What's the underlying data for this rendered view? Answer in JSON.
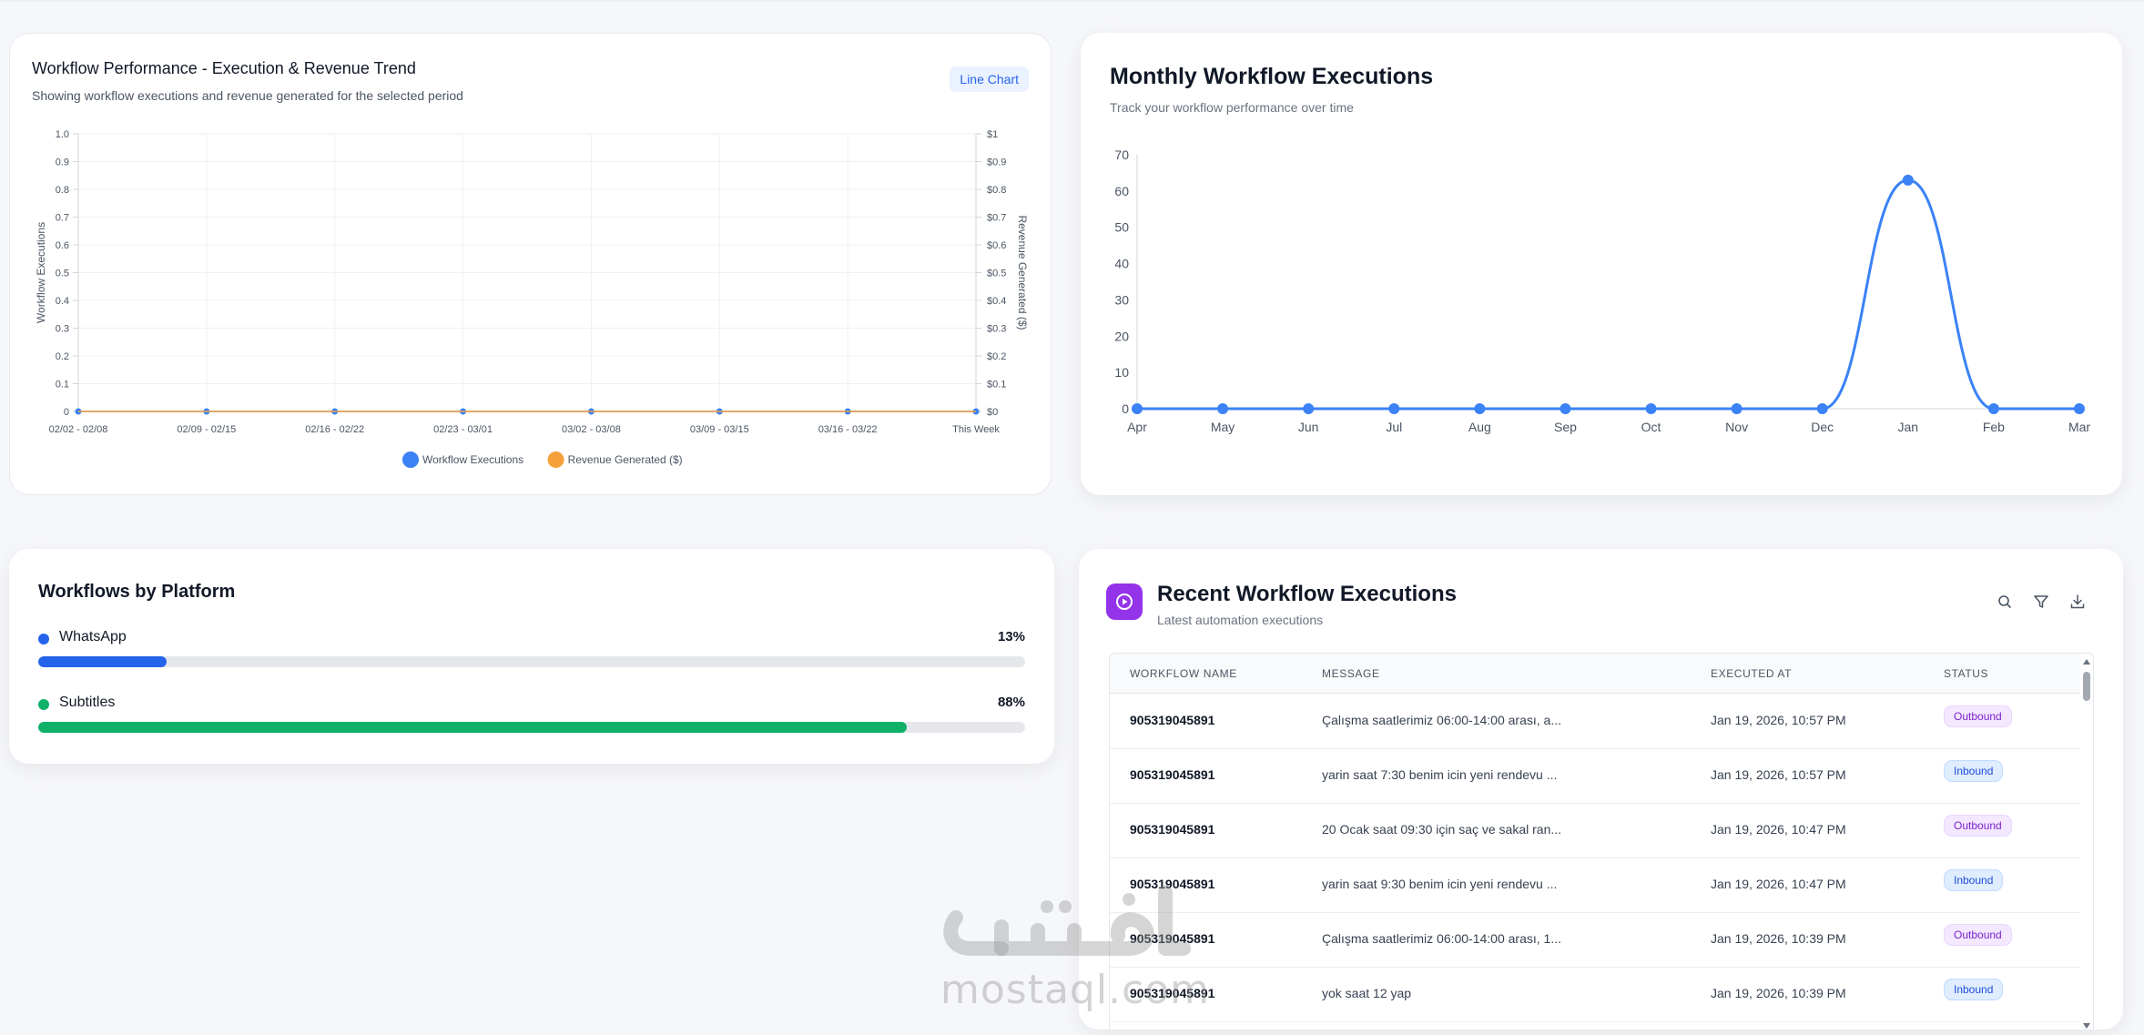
{
  "performance": {
    "title": "Workflow Performance - Execution & Revenue Trend",
    "subtitle": "Showing workflow executions and revenue generated for the selected period",
    "chart_type_badge": "Line Chart"
  },
  "monthly": {
    "title": "Monthly Workflow Executions",
    "subtitle": "Track your workflow performance over time"
  },
  "platforms": {
    "title": "Workflows by Platform",
    "items": [
      {
        "name": "WhatsApp",
        "percent_label": "13%",
        "percent": 13,
        "color": "#2563eb"
      },
      {
        "name": "Subtitles",
        "percent_label": "88%",
        "percent": 88,
        "color": "#10b069"
      }
    ]
  },
  "recent": {
    "title": "Recent Workflow Executions",
    "subtitle": "Latest automation executions",
    "toolbar_icons": [
      "search-icon",
      "filter-icon",
      "download-icon"
    ],
    "columns": [
      "WORKFLOW NAME",
      "MESSAGE",
      "EXECUTED AT",
      "STATUS"
    ],
    "rows": [
      {
        "workflow": "905319045891",
        "message": "Çalışma saatlerimiz 06:00-14:00 arası, a...",
        "executed_at": "Jan 19, 2026, 10:57 PM",
        "status": "Outbound"
      },
      {
        "workflow": "905319045891",
        "message": "yarin saat 7:30 benim icin yeni rendevu ...",
        "executed_at": "Jan 19, 2026, 10:57 PM",
        "status": "Inbound"
      },
      {
        "workflow": "905319045891",
        "message": "20 Ocak saat 09:30 için saç ve sakal ran...",
        "executed_at": "Jan 19, 2026, 10:47 PM",
        "status": "Outbound"
      },
      {
        "workflow": "905319045891",
        "message": "yarin saat 9:30 benim icin yeni rendevu ...",
        "executed_at": "Jan 19, 2026, 10:47 PM",
        "status": "Inbound"
      },
      {
        "workflow": "905319045891",
        "message": "Çalışma saatlerimiz 06:00-14:00 arası, 1...",
        "executed_at": "Jan 19, 2026, 10:39 PM",
        "status": "Outbound"
      },
      {
        "workflow": "905319045891",
        "message": "yok saat 12 yap",
        "executed_at": "Jan 19, 2026, 10:39 PM",
        "status": "Inbound"
      }
    ]
  },
  "watermark": {
    "brand": "مستقل",
    "domain": "mostaql.com"
  },
  "colors": {
    "blue": "#3b82f6",
    "orange": "#f5a13a",
    "outbound_bg": "#f3e8ff",
    "outbound_text": "#7e22ce",
    "inbound_bg": "#e0edff",
    "inbound_text": "#1d4ed8"
  },
  "chart_data": [
    {
      "type": "line",
      "x": [
        "02/02 - 02/08",
        "02/09 - 02/15",
        "02/16 - 02/22",
        "02/23 - 03/01",
        "03/02 - 03/08",
        "03/09 - 03/15",
        "03/16 - 03/22",
        "This Week"
      ],
      "series": [
        {
          "name": "Workflow Executions",
          "axis": "left",
          "color": "#3b82f6",
          "values": [
            0,
            0,
            0,
            0,
            0,
            0,
            0,
            0
          ]
        },
        {
          "name": "Revenue Generated ($)",
          "axis": "right",
          "color": "#f5a13a",
          "values": [
            0,
            0,
            0,
            0,
            0,
            0,
            0,
            0
          ]
        }
      ],
      "ylabel": "Workflow Executions",
      "y2label": "Revenue Generated ($)",
      "ylim": [
        0,
        1
      ],
      "y2lim": [
        0,
        1
      ],
      "yticks": [
        "0",
        "0.1",
        "0.2",
        "0.3",
        "0.4",
        "0.5",
        "0.6",
        "0.7",
        "0.8",
        "0.9",
        "1.0"
      ],
      "y2ticks": [
        "$0",
        "$0.1",
        "$0.2",
        "$0.3",
        "$0.4",
        "$0.5",
        "$0.6",
        "$0.7",
        "$0.8",
        "$0.9",
        "$1"
      ],
      "grid": true,
      "legend": "bottom"
    },
    {
      "type": "line",
      "categories": [
        "Apr",
        "May",
        "Jun",
        "Jul",
        "Aug",
        "Sep",
        "Oct",
        "Nov",
        "Dec",
        "Jan",
        "Feb",
        "Mar"
      ],
      "values": [
        0,
        0,
        0,
        0,
        0,
        0,
        0,
        0,
        0,
        63,
        0,
        0
      ],
      "ylim": [
        0,
        70
      ],
      "yticks": [
        0,
        10,
        20,
        30,
        40,
        50,
        60,
        70
      ],
      "color": "#3b82f6",
      "grid": false
    }
  ]
}
